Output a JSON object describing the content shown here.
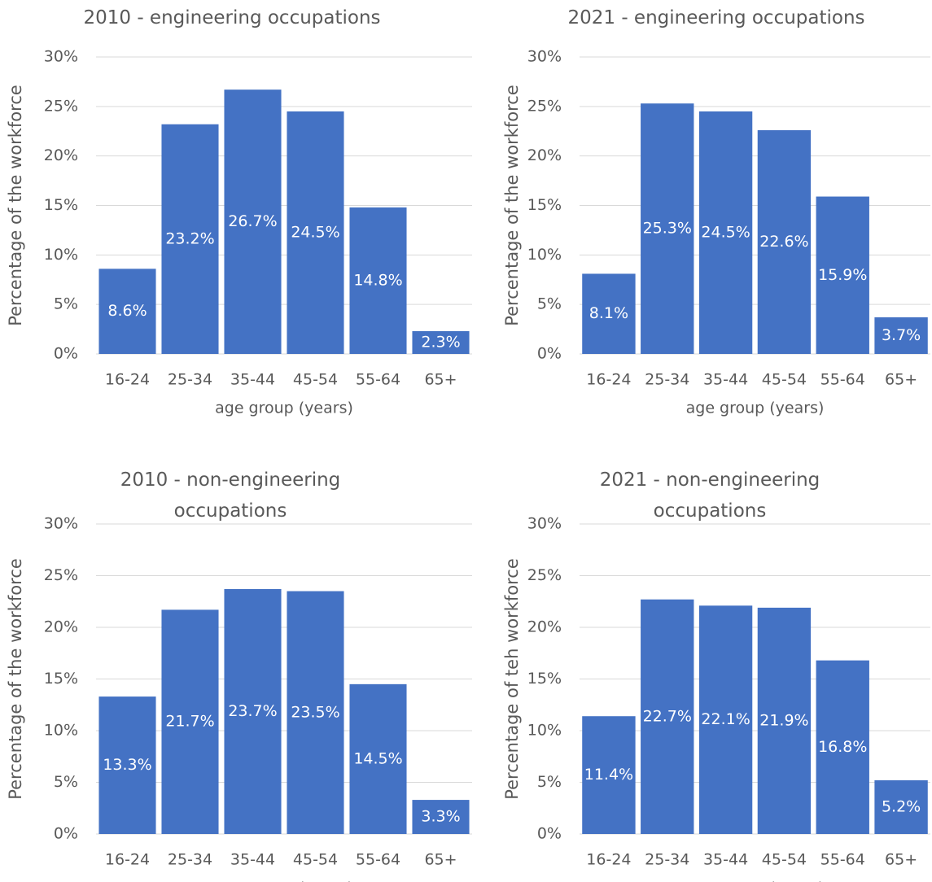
{
  "chart_data": [
    {
      "type": "bar",
      "title": "2010 - engineering occupations",
      "x_label": "age group (years)",
      "y_label": "Percentage of the workforce",
      "categories": [
        "16-24",
        "25-34",
        "35-44",
        "45-54",
        "55-64",
        "65+"
      ],
      "values": [
        8.6,
        23.2,
        26.7,
        24.5,
        14.8,
        2.3
      ],
      "value_labels": [
        "8.6%",
        "23.2%",
        "26.7%",
        "24.5%",
        "14.8%",
        "2.3%"
      ],
      "color": "#4472c4",
      "ylim": [
        0,
        30
      ],
      "yticks": [
        {
          "value": 0,
          "label": "0%"
        },
        {
          "value": 5,
          "label": "5%"
        },
        {
          "value": 10,
          "label": "10%"
        },
        {
          "value": 15,
          "label": "15%"
        },
        {
          "value": 20,
          "label": "20%"
        },
        {
          "value": 25,
          "label": "25%"
        },
        {
          "value": 30,
          "label": "30%"
        }
      ],
      "grid": true
    },
    {
      "type": "bar",
      "title": "2021 - engineering occupations",
      "x_label": "age group (years)",
      "y_label": "Percentage of the workforce",
      "categories": [
        "16-24",
        "25-34",
        "35-44",
        "45-54",
        "55-64",
        "65+"
      ],
      "values": [
        8.1,
        25.3,
        24.5,
        22.6,
        15.9,
        3.7
      ],
      "value_labels": [
        "8.1%",
        "25.3%",
        "24.5%",
        "22.6%",
        "15.9%",
        "3.7%"
      ],
      "color": "#4472c4",
      "ylim": [
        0,
        30
      ],
      "yticks": [
        {
          "value": 0,
          "label": "0%"
        },
        {
          "value": 5,
          "label": "5%"
        },
        {
          "value": 10,
          "label": "10%"
        },
        {
          "value": 15,
          "label": "15%"
        },
        {
          "value": 20,
          "label": "20%"
        },
        {
          "value": 25,
          "label": "25%"
        },
        {
          "value": 30,
          "label": "30%"
        }
      ],
      "grid": true
    },
    {
      "type": "bar",
      "title": "2010 - non-engineering occupations",
      "x_label": "age group (years)",
      "y_label": "Percentage of the workforce",
      "categories": [
        "16-24",
        "25-34",
        "35-44",
        "45-54",
        "55-64",
        "65+"
      ],
      "values": [
        13.3,
        21.7,
        23.7,
        23.5,
        14.5,
        3.3
      ],
      "value_labels": [
        "13.3%",
        "21.7%",
        "23.7%",
        "23.5%",
        "14.5%",
        "3.3%"
      ],
      "color": "#4472c4",
      "ylim": [
        0,
        30
      ],
      "yticks": [
        {
          "value": 0,
          "label": "0%"
        },
        {
          "value": 5,
          "label": "5%"
        },
        {
          "value": 10,
          "label": "10%"
        },
        {
          "value": 15,
          "label": "15%"
        },
        {
          "value": 20,
          "label": "20%"
        },
        {
          "value": 25,
          "label": "25%"
        },
        {
          "value": 30,
          "label": "30%"
        }
      ],
      "grid": true
    },
    {
      "type": "bar",
      "title": "2021 - non-engineering occupations",
      "x_label": "age group (years)",
      "y_label": "Percentage of teh workforce",
      "categories": [
        "16-24",
        "25-34",
        "35-44",
        "45-54",
        "55-64",
        "65+"
      ],
      "values": [
        11.4,
        22.7,
        22.1,
        21.9,
        16.8,
        5.2
      ],
      "value_labels": [
        "11.4%",
        "22.7%",
        "22.1%",
        "21.9%",
        "16.8%",
        "5.2%"
      ],
      "color": "#4472c4",
      "ylim": [
        0,
        30
      ],
      "yticks": [
        {
          "value": 0,
          "label": "0%"
        },
        {
          "value": 5,
          "label": "5%"
        },
        {
          "value": 10,
          "label": "10%"
        },
        {
          "value": 15,
          "label": "15%"
        },
        {
          "value": 20,
          "label": "20%"
        },
        {
          "value": 25,
          "label": "25%"
        },
        {
          "value": 30,
          "label": "30%"
        }
      ],
      "grid": true
    }
  ]
}
